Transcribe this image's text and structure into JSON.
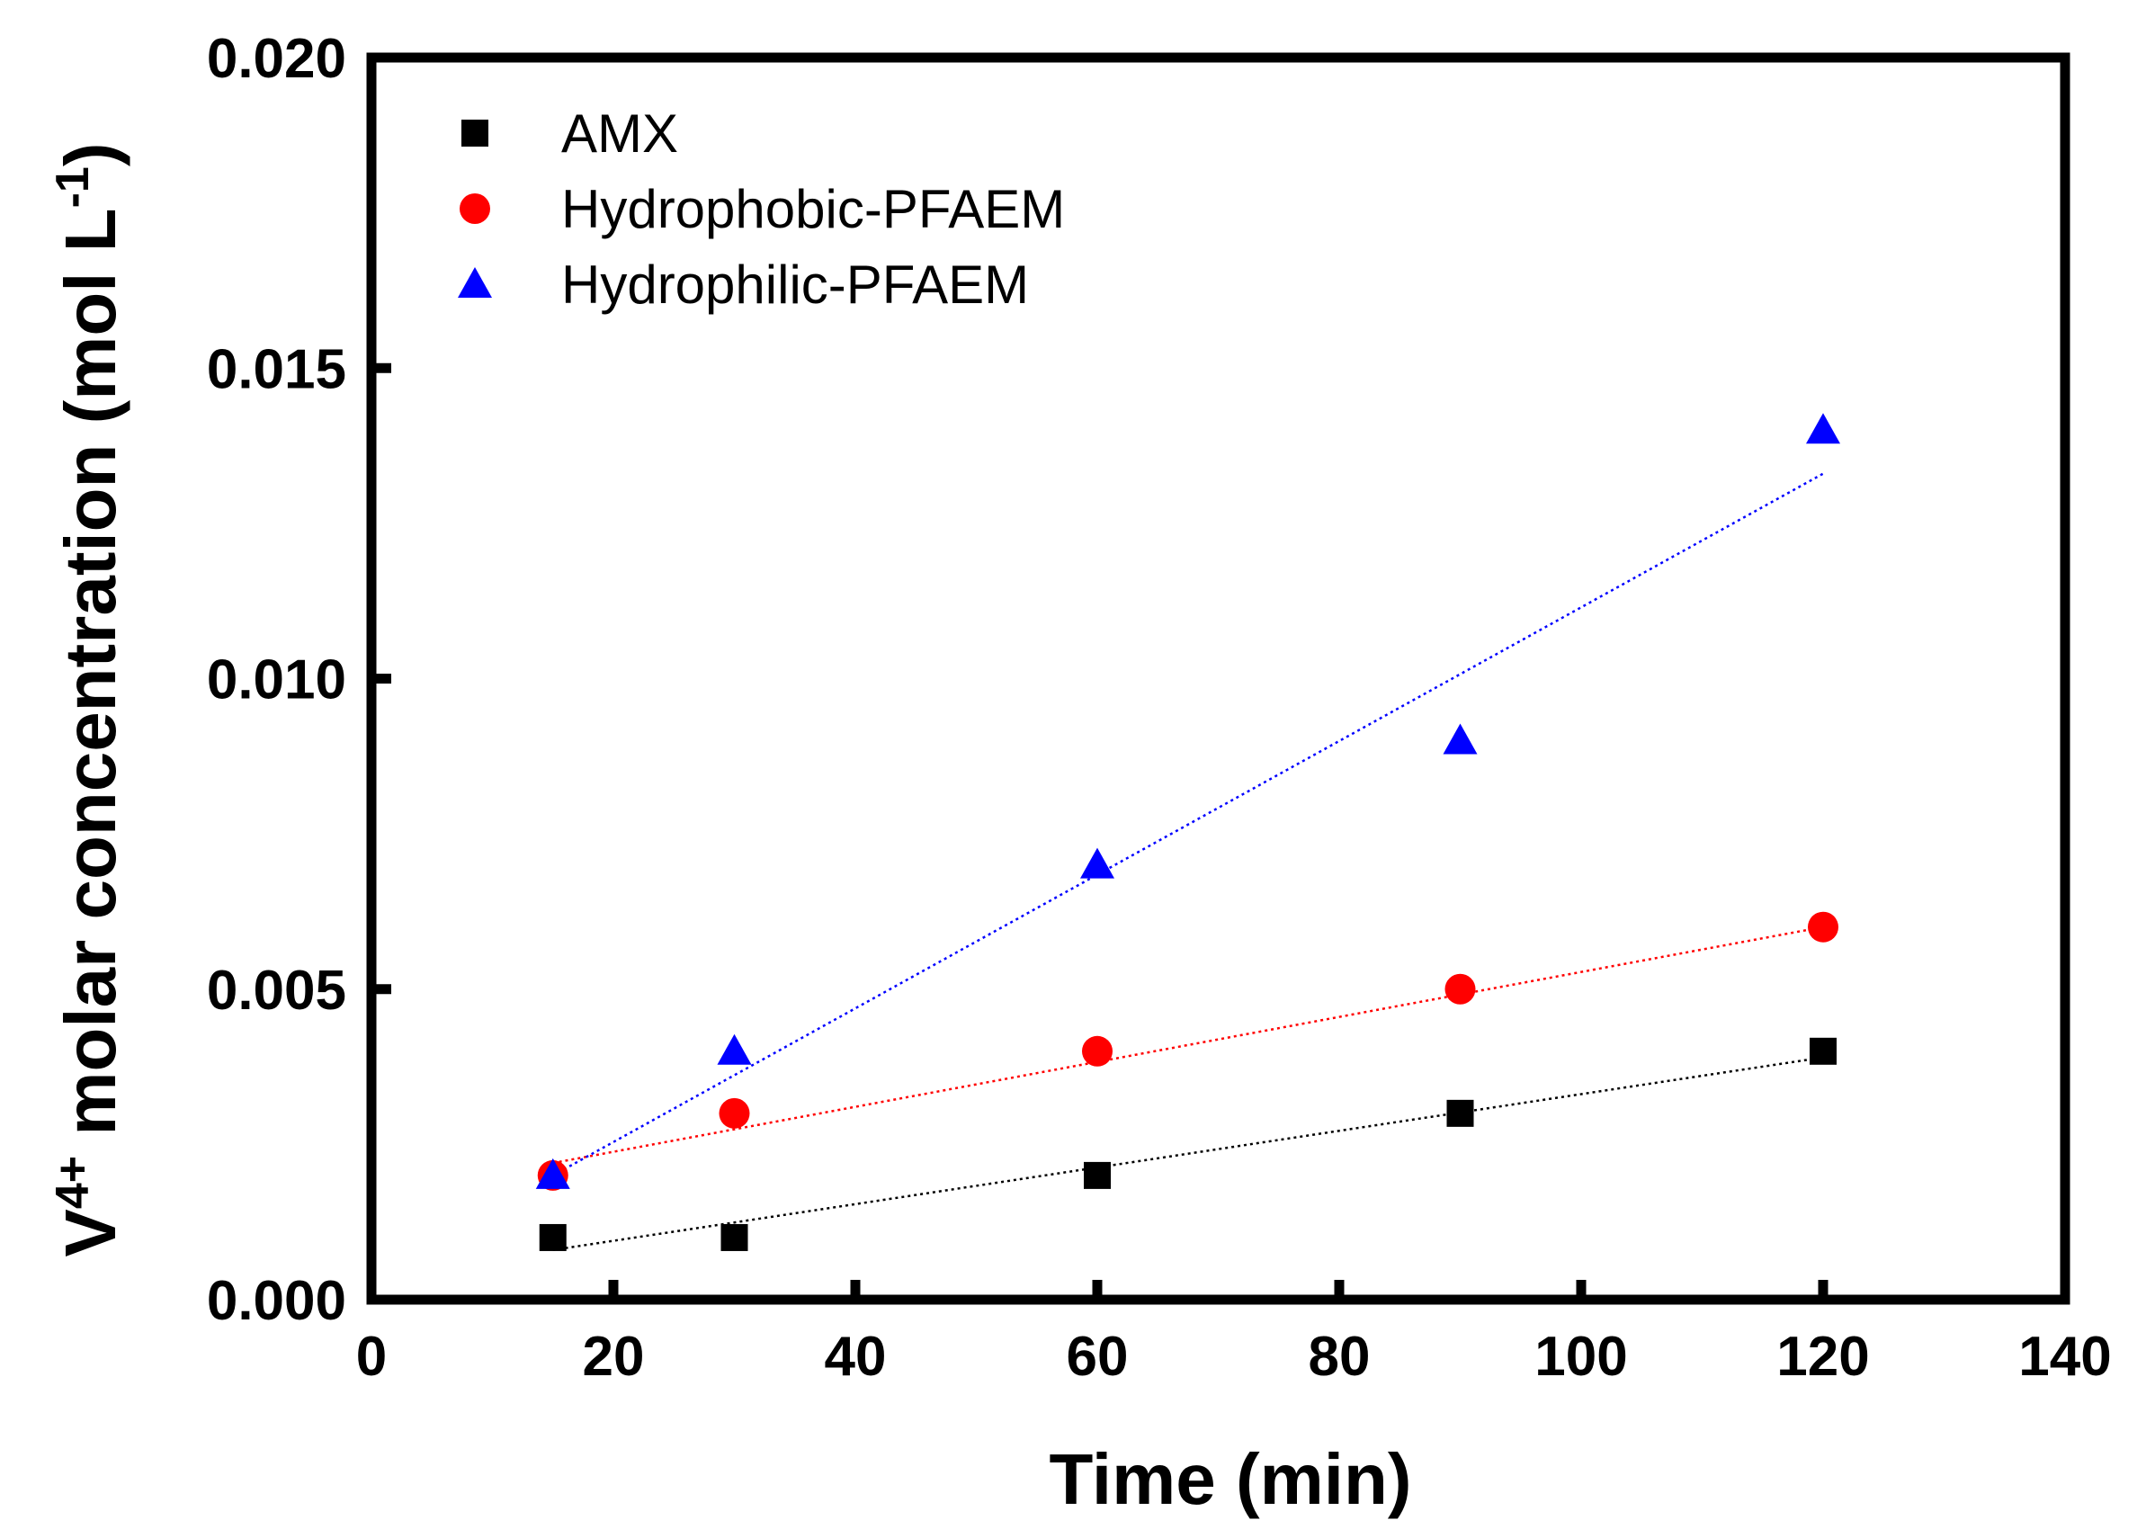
{
  "chart_data": {
    "type": "scatter",
    "title": "",
    "xlabel": "Time (min)",
    "ylabel": {
      "base": "V",
      "sup": "4+",
      "text": " molar concentration (mol L",
      "unit_sup": "-1",
      "close": ")"
    },
    "xlim": [
      0,
      140
    ],
    "ylim": [
      0,
      0.02
    ],
    "x_ticks": [
      {
        "value": 0,
        "label": "0"
      },
      {
        "value": 20,
        "label": "20"
      },
      {
        "value": 40,
        "label": "40"
      },
      {
        "value": 60,
        "label": "60"
      },
      {
        "value": 80,
        "label": "80"
      },
      {
        "value": 100,
        "label": "100"
      },
      {
        "value": 120,
        "label": "120"
      },
      {
        "value": 140,
        "label": "140"
      }
    ],
    "y_ticks": [
      {
        "value": 0,
        "label": "0.000"
      },
      {
        "value": 0.005,
        "label": "0.005"
      },
      {
        "value": 0.01,
        "label": "0.010"
      },
      {
        "value": 0.015,
        "label": "0.015"
      },
      {
        "value": 0.02,
        "label": "0.020"
      }
    ],
    "grid": false,
    "legend_position": "top-left",
    "series": [
      {
        "name": "AMX",
        "marker": "square",
        "color": "#000000",
        "x": [
          15,
          30,
          60,
          90,
          120
        ],
        "y": [
          0.001,
          0.001,
          0.002,
          0.003,
          0.004
        ],
        "fit": {
          "x": [
            15,
            120
          ],
          "y": [
            0.0008,
            0.0039
          ]
        }
      },
      {
        "name": "Hydrophobic-PFAEM",
        "marker": "circle",
        "color": "#ff0000",
        "x": [
          15,
          30,
          60,
          90,
          120
        ],
        "y": [
          0.002,
          0.003,
          0.004,
          0.005,
          0.006
        ],
        "fit": {
          "x": [
            15,
            120
          ],
          "y": [
            0.0022,
            0.006
          ]
        }
      },
      {
        "name": "Hydrophilic-PFAEM",
        "marker": "triangle",
        "color": "#0000ff",
        "x": [
          15,
          30,
          60,
          90,
          120
        ],
        "y": [
          0.002,
          0.004,
          0.007,
          0.009,
          0.014
        ],
        "fit": {
          "x": [
            15,
            120
          ],
          "y": [
            0.002,
            0.0133
          ]
        }
      }
    ]
  }
}
